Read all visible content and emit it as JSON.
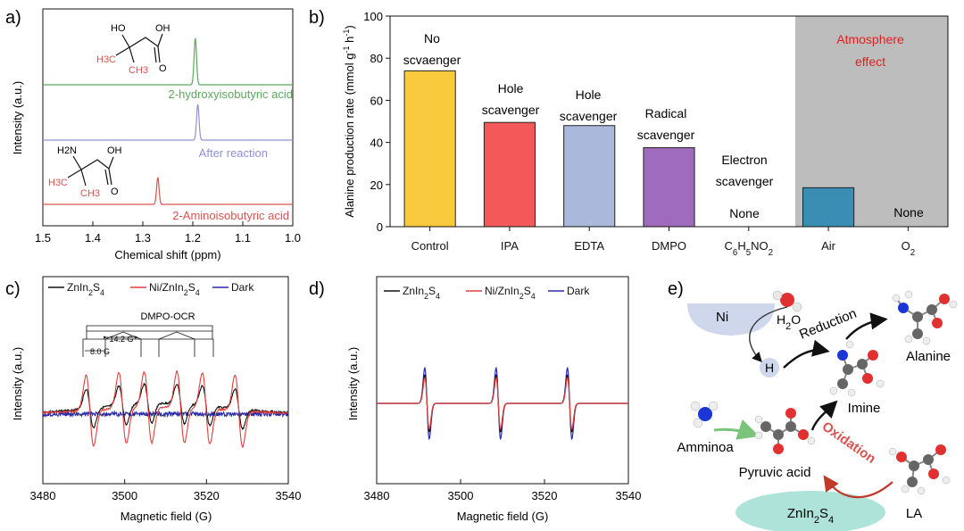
{
  "panels": {
    "a": {
      "label": "a)",
      "xlabel": "Chemical shift (ppm)",
      "ylabel": "Intensity (a.u.)",
      "xticks": [
        "1.5",
        "1.4",
        "1.3",
        "1.2",
        "1.1",
        "1.0"
      ],
      "traces": [
        {
          "name": "2-hydroxyisobutyric acid",
          "color": "#5aa95a",
          "peak_ppm": 1.195
        },
        {
          "name": "After reaction",
          "color": "#8f90d6",
          "peak_ppm": 1.19
        },
        {
          "name": "2-Aminoisobutyric acid",
          "color": "#d9534f",
          "peak_ppm": 1.27
        }
      ],
      "structure_labels": {
        "hydroxy": {
          "ho": "HO",
          "oh": "OH",
          "o": "O",
          "h3c": "H3C",
          "ch3": "CH3"
        },
        "amino": {
          "h2n": "H2N",
          "oh": "OH",
          "o": "O",
          "h3c": "H3C",
          "ch3": "CH3"
        }
      }
    },
    "b": {
      "label": "b)",
      "atmosphere_text_1": "Atmosphere",
      "atmosphere_text_2": "effect",
      "atmosphere_color": "#bdbdbd",
      "bar_annotations": [
        {
          "l1": "No",
          "l2": "scvaenger"
        },
        {
          "l1": "Hole",
          "l2": "scavenger"
        },
        {
          "l1": "Hole",
          "l2": "scavenger"
        },
        {
          "l1": "Radical",
          "l2": "scavenger"
        },
        {
          "l1": "Electron",
          "l2": "scavenger"
        }
      ],
      "none_labels": [
        "None",
        "None"
      ]
    },
    "c": {
      "label": "c)",
      "xlabel": "Magnetic field (G)",
      "ylabel": "Intensity (a.u.)",
      "xticks": [
        "3480",
        "3500",
        "3520",
        "3540"
      ],
      "legend": [
        {
          "name": "ZnIn2S4",
          "color": "#111111"
        },
        {
          "name": "Ni/ZnIn2S4",
          "color": "#e04040"
        },
        {
          "name": "Dark",
          "color": "#2a2aa8"
        }
      ],
      "annotation": "DMPO-OCR",
      "splitting_1": "14.2 G",
      "splitting_2": "8.0 G"
    },
    "d": {
      "label": "d)",
      "xlabel": "Magnetic field (G)",
      "ylabel": "Intensity (a.u.)",
      "xticks": [
        "3480",
        "3500",
        "3520",
        "3540"
      ],
      "legend": [
        {
          "name": "ZnIn2S4",
          "color": "#111111"
        },
        {
          "name": "Ni/ZnIn2S4",
          "color": "#e04040"
        },
        {
          "name": "Dark",
          "color": "#2a2aa8"
        }
      ]
    },
    "e": {
      "label": "e)",
      "ni": "Ni",
      "h2o": "H2O",
      "h": "H",
      "reduction": "Reduction",
      "alanine": "Alanine",
      "imine": "Imine",
      "amminoa": "Amminoa",
      "oxidation": "Oxidation",
      "pyruvic": "Pyruvic acid",
      "znins": "ZnIn2S4",
      "la": "LA"
    }
  },
  "chart_data": [
    {
      "type": "bar",
      "categories": [
        "Control",
        "IPA",
        "EDTA",
        "DMPO",
        "C6H5NO2",
        "Air",
        "O2"
      ],
      "values": [
        74,
        49.5,
        48,
        37.5,
        0,
        18.5,
        0
      ],
      "colors": [
        "#f9c93e",
        "#f4595a",
        "#aab8db",
        "#9e6bbd",
        "#9e6bbd",
        "#3a8eb4",
        "#3a8eb4"
      ],
      "ylabel": "Alanine production rate (mmol g-1 h-1)",
      "ylim": [
        0,
        100
      ],
      "yticks": [
        0,
        20,
        40,
        60,
        80,
        100
      ]
    },
    {
      "type": "line",
      "title": "",
      "xlabel": "Chemical shift (ppm)",
      "ylabel": "Intensity (a.u.)",
      "xlim": [
        1.5,
        1.0
      ],
      "series": [
        {
          "name": "2-hydroxyisobutyric acid",
          "peak": 1.195
        },
        {
          "name": "After reaction",
          "peak": 1.19
        },
        {
          "name": "2-Aminoisobutyric acid",
          "peak": 1.27
        }
      ]
    },
    {
      "type": "line",
      "xlabel": "Magnetic field (G)",
      "ylabel": "Intensity (a.u.)",
      "xlim": [
        3480,
        3540
      ],
      "series": [
        {
          "name": "ZnIn2S4",
          "line_centers": [
            3491.5,
            3499.5,
            3505.7,
            3513.7,
            3519.9,
            3527.9
          ],
          "relative_amplitude": 0.55
        },
        {
          "name": "Ni/ZnIn2S4",
          "line_centers": [
            3491.5,
            3499.5,
            3505.7,
            3513.7,
            3519.9,
            3527.9
          ],
          "relative_amplitude": 1.0
        },
        {
          "name": "Dark",
          "line_centers": [],
          "relative_amplitude": 0.0
        }
      ]
    },
    {
      "type": "line",
      "xlabel": "Magnetic field (G)",
      "ylabel": "Intensity (a.u.)",
      "xlim": [
        3480,
        3540
      ],
      "series": [
        {
          "name": "ZnIn2S4",
          "line_centers": [
            3492,
            3509,
            3526
          ],
          "relative_amplitude": 0.8
        },
        {
          "name": "Ni/ZnIn2S4",
          "line_centers": [
            3492,
            3509,
            3526
          ],
          "relative_amplitude": 0.72
        },
        {
          "name": "Dark",
          "line_centers": [
            3492,
            3509,
            3526
          ],
          "relative_amplitude": 1.0
        }
      ]
    }
  ]
}
